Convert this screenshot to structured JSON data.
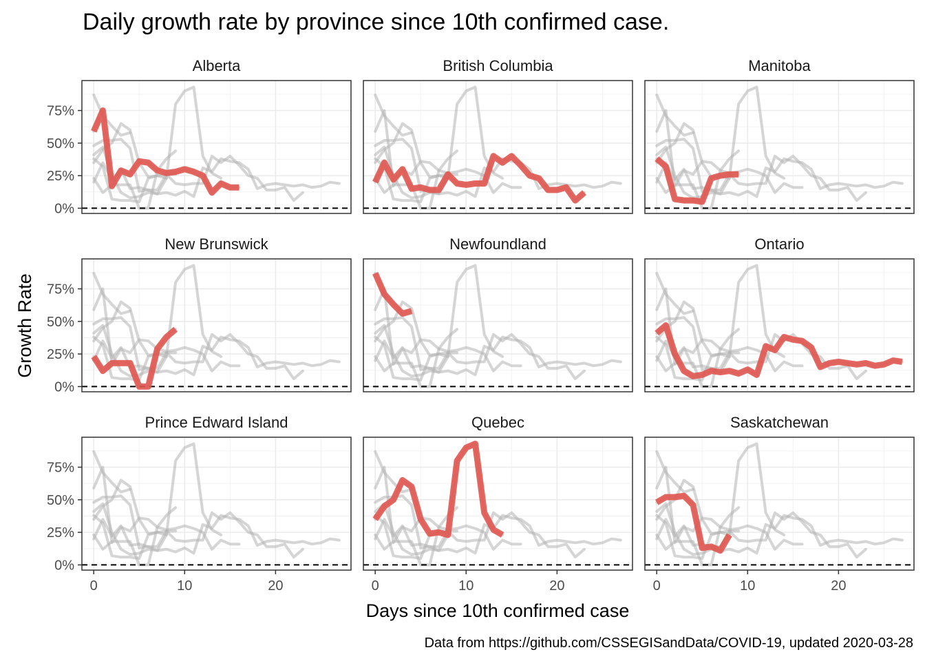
{
  "chart_data": {
    "type": "line",
    "title": "Daily growth rate by province since 10th confirmed case.",
    "xlabel": "Days since 10th confirmed case",
    "ylabel": "Growth Rate",
    "caption": "Data from https://github.com/CSSEGISandData/COVID-19, updated 2020-03-28",
    "xlim": [
      -1.3,
      28.3
    ],
    "ylim": [
      -0.04,
      0.98
    ],
    "x_ticks": [
      0,
      10,
      20
    ],
    "x_tick_labels": [
      "0",
      "10",
      "20"
    ],
    "y_ticks": [
      0,
      0.25,
      0.5,
      0.75
    ],
    "y_tick_labels": [
      "0%",
      "25%",
      "50%",
      "75%"
    ],
    "reference_line": {
      "y": 0,
      "style": "dashed"
    },
    "highlight_color": "#E0574F",
    "background_color": "#b3b3b3",
    "layout": "3x3 facets, each highlighting one province over all others in grey",
    "series": [
      {
        "name": "Alberta",
        "x": [
          0,
          1,
          2,
          3,
          4,
          5,
          6,
          7,
          8,
          9,
          10,
          11,
          12,
          13,
          14,
          15,
          16
        ],
        "y": [
          0.59,
          0.75,
          0.17,
          0.29,
          0.26,
          0.36,
          0.35,
          0.29,
          0.27,
          0.28,
          0.3,
          0.28,
          0.25,
          0.12,
          0.19,
          0.16,
          0.16
        ]
      },
      {
        "name": "British Columbia",
        "x": [
          0,
          1,
          2,
          3,
          4,
          5,
          6,
          7,
          8,
          9,
          10,
          11,
          12,
          13,
          14,
          15,
          16,
          17,
          18,
          19,
          20,
          21,
          22,
          23
        ],
        "y": [
          0.2,
          0.35,
          0.22,
          0.3,
          0.15,
          0.16,
          0.14,
          0.14,
          0.26,
          0.19,
          0.18,
          0.19,
          0.19,
          0.4,
          0.35,
          0.4,
          0.33,
          0.25,
          0.23,
          0.14,
          0.14,
          0.16,
          0.06,
          0.12
        ]
      },
      {
        "name": "Manitoba",
        "x": [
          0,
          1,
          2,
          3,
          4,
          5,
          6,
          7,
          8,
          9
        ],
        "y": [
          0.38,
          0.32,
          0.07,
          0.06,
          0.06,
          0.05,
          0.23,
          0.25,
          0.26,
          0.26
        ]
      },
      {
        "name": "New Brunswick",
        "x": [
          0,
          1,
          2,
          3,
          4,
          5,
          6,
          7,
          8,
          9
        ],
        "y": [
          0.23,
          0.12,
          0.18,
          0.18,
          0.18,
          0.0,
          0.0,
          0.29,
          0.38,
          0.44
        ]
      },
      {
        "name": "Newfoundland",
        "x": [
          0,
          1,
          2,
          3,
          4
        ],
        "y": [
          0.87,
          0.71,
          0.63,
          0.56,
          0.58
        ]
      },
      {
        "name": "Ontario",
        "x": [
          0,
          1,
          2,
          3,
          4,
          5,
          6,
          7,
          8,
          9,
          10,
          11,
          12,
          13,
          14,
          15,
          16,
          17,
          18,
          19,
          20,
          21,
          22,
          23,
          24,
          25,
          26,
          27
        ],
        "y": [
          0.41,
          0.47,
          0.25,
          0.12,
          0.08,
          0.09,
          0.12,
          0.11,
          0.12,
          0.1,
          0.13,
          0.09,
          0.31,
          0.28,
          0.38,
          0.36,
          0.35,
          0.3,
          0.15,
          0.18,
          0.19,
          0.18,
          0.17,
          0.18,
          0.16,
          0.17,
          0.2,
          0.19
        ]
      },
      {
        "name": "Prince Edward Island",
        "x": [],
        "y": []
      },
      {
        "name": "Quebec",
        "x": [
          0,
          1,
          2,
          3,
          4,
          5,
          6,
          7,
          8,
          9,
          10,
          11,
          12,
          13,
          14
        ],
        "y": [
          0.35,
          0.45,
          0.5,
          0.65,
          0.6,
          0.35,
          0.24,
          0.25,
          0.23,
          0.8,
          0.9,
          0.93,
          0.4,
          0.27,
          0.23
        ]
      },
      {
        "name": "Saskatchewan",
        "x": [
          0,
          1,
          2,
          3,
          4,
          5,
          6,
          7,
          8
        ],
        "y": [
          0.48,
          0.52,
          0.52,
          0.53,
          0.46,
          0.13,
          0.14,
          0.11,
          0.23
        ]
      }
    ]
  }
}
